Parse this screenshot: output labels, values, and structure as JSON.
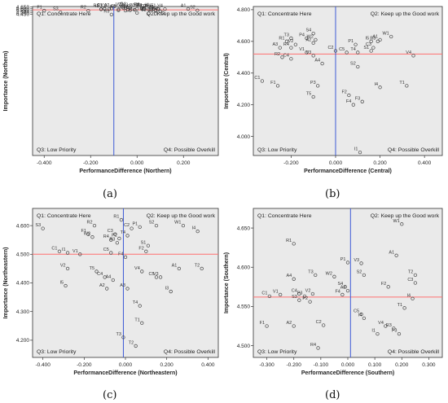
{
  "colors": {
    "plot_bg": "#eaeaea",
    "marker": "#444444",
    "hline": "#ff6f6f",
    "vline": "#3d5ad6",
    "axis": "#333333"
  },
  "chart_data": [
    {
      "panel": "(a)",
      "type": "scatter",
      "xlabel": "PerformanceDifference (Northern)",
      "ylabel": "Importance (Northern)",
      "xlim": [
        -0.45,
        0.35
      ],
      "ylim": [
        0.432,
        4.665
      ],
      "ylim_note": "",
      "xticks": [
        "-0.400",
        "-0.200",
        "0.000",
        "0.200"
      ],
      "xtick_values": [
        -0.4,
        -0.2,
        0.0,
        0.2
      ],
      "yticks": [
        "4.450",
        "4.500",
        "4.550",
        "4.600",
        "4.650"
      ],
      "ytick_values": [
        4.45,
        4.5,
        4.55,
        4.6,
        4.65
      ],
      "hline": 4.57,
      "vline": -0.1,
      "quadrants": [
        "Q1: Concentrate Here",
        "Q2: Keep up the Good work",
        "Q3: Low Priority",
        "Q4: Possible Overkill"
      ],
      "points": [
        {
          "label": "S4",
          "x": -0.04,
          "y": 4.645
        },
        {
          "label": "V1",
          "x": -0.06,
          "y": 4.632
        },
        {
          "label": "V2",
          "x": -0.05,
          "y": 4.632
        },
        {
          "label": "V3",
          "x": -0.03,
          "y": 4.623
        },
        {
          "label": "R3",
          "x": 0.02,
          "y": 4.63
        },
        {
          "label": "C1",
          "x": -0.14,
          "y": 4.604
        },
        {
          "label": "A2",
          "x": -0.11,
          "y": 4.61
        },
        {
          "label": "C2",
          "x": -0.12,
          "y": 4.596
        },
        {
          "label": "R1",
          "x": -0.155,
          "y": 4.592
        },
        {
          "label": "I1",
          "x": -0.155,
          "y": 4.584
        },
        {
          "label": "P1",
          "x": -0.14,
          "y": 4.6
        },
        {
          "label": "T4",
          "x": 0.03,
          "y": 4.61
        },
        {
          "label": "I4",
          "x": 0.06,
          "y": 4.617
        },
        {
          "label": "P3",
          "x": 0.0,
          "y": 4.602
        },
        {
          "label": "S1",
          "x": 0.02,
          "y": 4.598
        },
        {
          "label": "P2",
          "x": 0.03,
          "y": 4.595
        },
        {
          "label": "W1",
          "x": 0.07,
          "y": 4.6
        },
        {
          "label": "C5",
          "x": -0.08,
          "y": 4.585
        },
        {
          "label": "A4",
          "x": -0.04,
          "y": 4.57
        },
        {
          "label": "T2",
          "x": 0.025,
          "y": 4.59
        },
        {
          "label": "C3",
          "x": 0.05,
          "y": 4.585
        },
        {
          "label": "R4",
          "x": 0.06,
          "y": 4.578
        },
        {
          "label": "T1",
          "x": 0.09,
          "y": 4.59
        },
        {
          "label": "V4",
          "x": 0.12,
          "y": 4.59
        },
        {
          "label": "A1",
          "x": 0.22,
          "y": 4.597
        },
        {
          "label": "W2",
          "x": -0.08,
          "y": 4.558
        },
        {
          "label": "R2",
          "x": -0.21,
          "y": 4.547
        },
        {
          "label": "F1",
          "x": -0.4,
          "y": 4.548
        },
        {
          "label": "I5",
          "x": -0.05,
          "y": 4.55
        },
        {
          "label": "S2",
          "x": -0.03,
          "y": 4.562
        },
        {
          "label": "C2b",
          "x": -0.01,
          "y": 4.57
        },
        {
          "label": "T3",
          "x": 0.08,
          "y": 4.548
        },
        {
          "label": "I5b",
          "x": 0.08,
          "y": 4.562
        },
        {
          "label": "A3",
          "x": 0.1,
          "y": 4.525
        },
        {
          "label": "S2b",
          "x": 0.26,
          "y": 4.555
        },
        {
          "label": "S3",
          "x": -0.33,
          "y": 4.5
        },
        {
          "label": "C4",
          "x": 0.0,
          "y": 4.483
        },
        {
          "label": "F2",
          "x": 0.05,
          "y": 4.47
        },
        {
          "label": "F3",
          "x": 0.11,
          "y": 4.487
        },
        {
          "label": "C3b",
          "x": 0.08,
          "y": 4.465
        },
        {
          "label": "R5",
          "x": -0.11,
          "y": 4.437
        }
      ]
    },
    {
      "panel": "(b)",
      "type": "scatter",
      "xlabel": "PerformanceDifference (Central)",
      "ylabel": "Importance (Central)",
      "xlim": [
        -0.37,
        0.48
      ],
      "ylim": [
        3.88,
        4.82
      ],
      "xticks": [
        "-0.200",
        "0.000",
        "0.200",
        "0.400"
      ],
      "xtick_values": [
        -0.2,
        0.0,
        0.2,
        0.4
      ],
      "yticks": [
        "4.000",
        "4.200",
        "4.400",
        "4.600",
        "4.800"
      ],
      "ytick_values": [
        4.0,
        4.2,
        4.4,
        4.6,
        4.8
      ],
      "hline": 4.52,
      "vline": 0.0,
      "quadrants": [
        "Q1: Concentrate Here",
        "Q2: Keep up the Good work",
        "Q3: Low Priority",
        "Q4: Possible Overkill"
      ],
      "points": [
        {
          "label": "S4",
          "x": -0.1,
          "y": 4.65
        },
        {
          "label": "T3",
          "x": -0.2,
          "y": 4.62
        },
        {
          "label": "P4",
          "x": -0.13,
          "y": 4.62
        },
        {
          "label": "W2",
          "x": -0.09,
          "y": 4.61
        },
        {
          "label": "R1",
          "x": -0.22,
          "y": 4.6
        },
        {
          "label": "A2",
          "x": -0.1,
          "y": 4.59
        },
        {
          "label": "W1",
          "x": 0.25,
          "y": 4.63
        },
        {
          "label": "A1",
          "x": 0.2,
          "y": 4.61
        },
        {
          "label": "R3",
          "x": 0.19,
          "y": 4.6
        },
        {
          "label": "I5",
          "x": 0.16,
          "y": 4.6
        },
        {
          "label": "P1",
          "x": 0.09,
          "y": 4.58
        },
        {
          "label": "V2",
          "x": -0.18,
          "y": 4.58
        },
        {
          "label": "A3",
          "x": -0.25,
          "y": 4.56
        },
        {
          "label": "R4",
          "x": -0.2,
          "y": 4.56
        },
        {
          "label": "C3",
          "x": 0.17,
          "y": 4.56
        },
        {
          "label": "C2",
          "x": 0.0,
          "y": 4.54
        },
        {
          "label": "C5",
          "x": 0.05,
          "y": 4.53
        },
        {
          "label": "T4",
          "x": 0.1,
          "y": 4.53
        },
        {
          "label": "S1",
          "x": 0.16,
          "y": 4.54
        },
        {
          "label": "V1",
          "x": -0.13,
          "y": 4.53
        },
        {
          "label": "V3",
          "x": -0.1,
          "y": 4.51
        },
        {
          "label": "R2",
          "x": -0.24,
          "y": 4.5
        },
        {
          "label": "C4",
          "x": -0.2,
          "y": 4.49
        },
        {
          "label": "V4",
          "x": 0.35,
          "y": 4.51
        },
        {
          "label": "A4",
          "x": -0.06,
          "y": 4.46
        },
        {
          "label": "S2",
          "x": 0.1,
          "y": 4.44
        },
        {
          "label": "C1",
          "x": -0.33,
          "y": 4.35
        },
        {
          "label": "F1",
          "x": -0.26,
          "y": 4.32
        },
        {
          "label": "P3",
          "x": -0.08,
          "y": 4.32
        },
        {
          "label": "T5",
          "x": -0.1,
          "y": 4.25
        },
        {
          "label": "F2",
          "x": 0.06,
          "y": 4.26
        },
        {
          "label": "I4",
          "x": 0.2,
          "y": 4.31
        },
        {
          "label": "T1",
          "x": 0.32,
          "y": 4.32
        },
        {
          "label": "F3",
          "x": 0.12,
          "y": 4.22
        },
        {
          "label": "F4",
          "x": 0.08,
          "y": 4.2
        },
        {
          "label": "I1",
          "x": 0.11,
          "y": 3.9
        }
      ]
    },
    {
      "panel": "(c)",
      "type": "scatter",
      "xlabel": "PerformanceDifference (Northeastern)",
      "ylabel": "Importance (Northeastern)",
      "xlim": [
        -0.45,
        0.45
      ],
      "ylim": [
        4.14,
        4.66
      ],
      "xticks": [
        "-0.400",
        "-0.200",
        "0.000",
        "0.200",
        "0.400"
      ],
      "xtick_values": [
        -0.4,
        -0.2,
        0.0,
        0.2,
        0.4
      ],
      "yticks": [
        "4.200",
        "4.300",
        "4.400",
        "4.500",
        "4.600"
      ],
      "ytick_values": [
        4.2,
        4.3,
        4.4,
        4.5,
        4.6
      ],
      "hline": 4.5,
      "vline": -0.01,
      "quadrants": [
        "Q1: Concentrate Here",
        "Q2: Keep up the Good work",
        "Q3: Low Priority",
        "Q4: Possible Overkill"
      ],
      "points": [
        {
          "label": "S3",
          "x": -0.4,
          "y": 4.59
        },
        {
          "label": "R1",
          "x": -0.02,
          "y": 4.62
        },
        {
          "label": "R2",
          "x": -0.15,
          "y": 4.6
        },
        {
          "label": "C2",
          "x": 0.03,
          "y": 4.59
        },
        {
          "label": "P1",
          "x": 0.07,
          "y": 4.595
        },
        {
          "label": "S2",
          "x": 0.15,
          "y": 4.6
        },
        {
          "label": "W1",
          "x": 0.28,
          "y": 4.6
        },
        {
          "label": "I4",
          "x": 0.35,
          "y": 4.58
        },
        {
          "label": "F1",
          "x": -0.18,
          "y": 4.57
        },
        {
          "label": "W2",
          "x": -0.16,
          "y": 4.56
        },
        {
          "label": "C3",
          "x": -0.05,
          "y": 4.57
        },
        {
          "label": "P2",
          "x": -0.03,
          "y": 4.555
        },
        {
          "label": "R4",
          "x": -0.07,
          "y": 4.55
        },
        {
          "label": "R3",
          "x": -0.04,
          "y": 4.54
        },
        {
          "label": "T4",
          "x": 0.01,
          "y": 4.565
        },
        {
          "label": "S1",
          "x": 0.11,
          "y": 4.53
        },
        {
          "label": "F2",
          "x": 0.1,
          "y": 4.51
        },
        {
          "label": "C1",
          "x": -0.32,
          "y": 4.51
        },
        {
          "label": "I1",
          "x": -0.28,
          "y": 4.505
        },
        {
          "label": "V1",
          "x": -0.22,
          "y": 4.5
        },
        {
          "label": "C5",
          "x": -0.07,
          "y": 4.505
        },
        {
          "label": "F4",
          "x": 0.0,
          "y": 4.49
        },
        {
          "label": "V2",
          "x": -0.28,
          "y": 4.45
        },
        {
          "label": "T5",
          "x": -0.14,
          "y": 4.44
        },
        {
          "label": "V4",
          "x": 0.08,
          "y": 4.44
        },
        {
          "label": "A1",
          "x": 0.26,
          "y": 4.45
        },
        {
          "label": "T2b",
          "x": 0.37,
          "y": 4.45
        },
        {
          "label": "C4",
          "x": -0.1,
          "y": 4.42
        },
        {
          "label": "A4",
          "x": -0.06,
          "y": 4.41
        },
        {
          "label": "C5b",
          "x": 0.15,
          "y": 4.42
        },
        {
          "label": "V3",
          "x": 0.17,
          "y": 4.42
        },
        {
          "label": "I5",
          "x": -0.29,
          "y": 4.39
        },
        {
          "label": "A2",
          "x": -0.09,
          "y": 4.38
        },
        {
          "label": "A3",
          "x": 0.01,
          "y": 4.38
        },
        {
          "label": "I3",
          "x": 0.22,
          "y": 4.37
        },
        {
          "label": "T4b",
          "x": 0.07,
          "y": 4.32
        },
        {
          "label": "T1",
          "x": 0.08,
          "y": 4.26
        },
        {
          "label": "T3",
          "x": -0.01,
          "y": 4.21
        },
        {
          "label": "T2",
          "x": 0.05,
          "y": 4.18
        }
      ]
    },
    {
      "panel": "(d)",
      "type": "scatter",
      "xlabel": "PerformanceDifference (Southern)",
      "ylabel": "Importance (Southern)",
      "xlim": [
        -0.35,
        0.35
      ],
      "ylim": [
        4.485,
        4.675
      ],
      "xticks": [
        "-0.300",
        "-0.200",
        "-0.100",
        "0.000",
        "0.100",
        "0.200",
        "0.300"
      ],
      "xtick_values": [
        -0.3,
        -0.2,
        -0.1,
        0.0,
        0.1,
        0.2,
        0.3
      ],
      "yticks": [
        "4.500",
        "4.550",
        "4.600",
        "4.650"
      ],
      "ytick_values": [
        4.5,
        4.55,
        4.6,
        4.65
      ],
      "hline": 4.562,
      "vline": 0.01,
      "quadrants": [
        "Q1: Concentrate Here",
        "Q2: Keep up the Good work",
        "Q3: Low Priority",
        "Q4: Possible Overkill"
      ],
      "points": [
        {
          "label": "W1",
          "x": 0.2,
          "y": 4.655
        },
        {
          "label": "R1",
          "x": -0.2,
          "y": 4.63
        },
        {
          "label": "A1",
          "x": 0.18,
          "y": 4.615
        },
        {
          "label": "P1",
          "x": 0.0,
          "y": 4.606
        },
        {
          "label": "V3",
          "x": 0.05,
          "y": 4.605
        },
        {
          "label": "T3",
          "x": -0.12,
          "y": 4.59
        },
        {
          "label": "W2",
          "x": -0.05,
          "y": 4.588
        },
        {
          "label": "S2",
          "x": 0.06,
          "y": 4.59
        },
        {
          "label": "T2",
          "x": 0.25,
          "y": 4.59
        },
        {
          "label": "A4",
          "x": -0.2,
          "y": 4.585
        },
        {
          "label": "C3",
          "x": 0.25,
          "y": 4.58
        },
        {
          "label": "F2",
          "x": 0.15,
          "y": 4.575
        },
        {
          "label": "S4",
          "x": -0.01,
          "y": 4.575
        },
        {
          "label": "A3",
          "x": 0.0,
          "y": 4.57
        },
        {
          "label": "C1",
          "x": -0.29,
          "y": 4.563
        },
        {
          "label": "V1",
          "x": -0.25,
          "y": 4.565
        },
        {
          "label": "C4",
          "x": -0.18,
          "y": 4.566
        },
        {
          "label": "P3",
          "x": -0.16,
          "y": 4.563
        },
        {
          "label": "V2",
          "x": -0.13,
          "y": 4.566
        },
        {
          "label": "S3",
          "x": -0.18,
          "y": 4.558
        },
        {
          "label": "P2",
          "x": -0.14,
          "y": 4.556
        },
        {
          "label": "I4",
          "x": 0.24,
          "y": 4.56
        },
        {
          "label": "F4",
          "x": -0.02,
          "y": 4.565
        },
        {
          "label": "C5",
          "x": 0.05,
          "y": 4.54
        },
        {
          "label": "T1",
          "x": 0.21,
          "y": 4.548
        },
        {
          "label": "I4b",
          "x": 0.06,
          "y": 4.535
        },
        {
          "label": "F1",
          "x": -0.3,
          "y": 4.525
        },
        {
          "label": "A2",
          "x": -0.2,
          "y": 4.525
        },
        {
          "label": "C2",
          "x": -0.09,
          "y": 4.526
        },
        {
          "label": "V4",
          "x": 0.14,
          "y": 4.525
        },
        {
          "label": "R3",
          "x": 0.17,
          "y": 4.522
        },
        {
          "label": "F3",
          "x": 0.19,
          "y": 4.515
        },
        {
          "label": "I1",
          "x": 0.11,
          "y": 4.515
        },
        {
          "label": "R4",
          "x": -0.11,
          "y": 4.497
        }
      ]
    }
  ]
}
